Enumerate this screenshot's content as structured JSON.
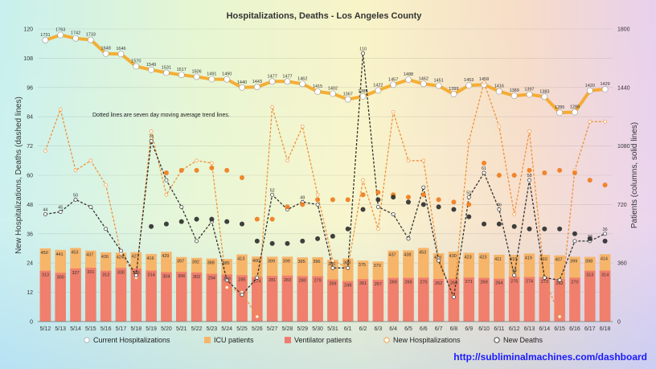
{
  "chart_data": {
    "type": "bar",
    "title": "Hospitalizations, Deaths - Los Angeles County",
    "ylabel_left": "New Hospitalizations, Deaths (dashed lines)",
    "ylabel_right": "Patients (columns, solid lines)",
    "annotation": "Dotted lines are seven day moving average trend lines.",
    "source": "http://subliminalmachines.com/dashboard",
    "ylim_left": [
      0,
      120
    ],
    "ylim_right": [
      0,
      1800
    ],
    "yticks_left": [
      "0",
      "12",
      "24",
      "36",
      "48",
      "60",
      "72",
      "84",
      "96",
      "108",
      "120"
    ],
    "yticks_right": [
      "0",
      "360",
      "720",
      "1080",
      "1440",
      "1800"
    ],
    "categories": [
      "5/12",
      "5/13",
      "5/14",
      "5/15",
      "5/16",
      "5/17",
      "5/18",
      "5/19",
      "5/20",
      "5/21",
      "5/22",
      "5/23",
      "5/24",
      "5/25",
      "5/26",
      "5/27",
      "5/28",
      "5/29",
      "5/30",
      "5/31",
      "6/1",
      "6/2",
      "6/3",
      "6/4",
      "6/5",
      "6/6",
      "6/7",
      "6/8",
      "6/9",
      "6/10",
      "6/11",
      "6/12",
      "6/13",
      "6/14",
      "6/15",
      "6/16",
      "6/17",
      "6/18"
    ],
    "legend": [
      "Current Hospitalizations",
      "ICU patients",
      "Ventilator patients",
      "New Hospitalizations",
      "New Deaths"
    ],
    "legend_position": "bottom",
    "colors": {
      "hosp": "#f5a623",
      "icu": "#f7b56a",
      "vent": "#f07b6e",
      "newhosp": "#f0913a",
      "deaths": "#333333"
    },
    "series": [
      {
        "name": "Current Hospitalizations",
        "axis": "right",
        "values": [
          1731,
          1763,
          1742,
          1733,
          1648,
          1646,
          1570,
          1549,
          1531,
          1517,
          1506,
          1491,
          1490,
          1440,
          1443,
          1477,
          1477,
          1462,
          1415,
          1402,
          1367,
          1385,
          1422,
          1457,
          1488,
          1462,
          1451,
          1399,
          1453,
          1458,
          1416,
          1389,
          1397,
          1383,
          1285,
          1288,
          1420,
          1429
        ]
      },
      {
        "name": "ICU patients",
        "axis": "right",
        "values": [
          450,
          441,
          453,
          437,
          426,
          424,
          427,
          416,
          429,
          397,
          392,
          388,
          385,
          413,
          400,
          399,
          399,
          395,
          396,
          380,
          388,
          375,
          370,
          437,
          438,
          453,
          420,
          430,
          423,
          423,
          411,
          410,
          419,
          410,
          407,
          399,
          398,
          414
        ]
      },
      {
        "name": "Ventilator patients",
        "axis": "right",
        "values": [
          313,
          300,
          327,
          331,
          313,
          330,
          326,
          314,
          304,
          306,
          302,
          294,
          290,
          285,
          274,
          281,
          283,
          280,
          279,
          259,
          249,
          261,
          257,
          269,
          269,
          270,
          262,
          264,
          271,
          269,
          264,
          275,
          274,
          273,
          262,
          270,
          313,
          314
        ]
      },
      {
        "name": "New Hospitalizations",
        "axis": "left",
        "values": [
          70,
          87,
          62,
          66,
          56,
          28,
          18,
          78,
          52,
          62,
          66,
          65,
          14,
          12,
          2,
          88,
          66,
          80,
          52,
          25,
          22,
          58,
          38,
          86,
          66,
          66,
          26,
          10,
          74,
          98,
          80,
          44,
          78,
          18,
          2,
          62,
          82,
          82
        ]
      },
      {
        "name": "New Deaths",
        "axis": "left",
        "values": [
          44,
          45,
          50,
          47,
          38,
          29,
          19,
          74,
          58,
          47,
          33,
          41,
          17,
          11,
          18,
          52,
          46,
          49,
          48,
          22,
          22,
          110,
          47,
          44,
          34,
          55,
          25,
          10,
          51,
          61,
          46,
          19,
          58,
          18,
          17,
          33,
          33,
          36
        ]
      },
      {
        "name": "New Hospitalizations trend",
        "axis": "left",
        "values": [
          null,
          null,
          null,
          null,
          null,
          null,
          null,
          null,
          61,
          62,
          62,
          63,
          62,
          59,
          42,
          42,
          47,
          48,
          50,
          50,
          50,
          52,
          53,
          52,
          51,
          52,
          50,
          49,
          48,
          65,
          60,
          60,
          62,
          61,
          62,
          61,
          58,
          56
        ]
      },
      {
        "name": "New Deaths trend",
        "axis": "left",
        "values": [
          null,
          null,
          null,
          null,
          null,
          null,
          null,
          39,
          40,
          41,
          42,
          42,
          41,
          40,
          33,
          32,
          32,
          33,
          34,
          35,
          38,
          46,
          50,
          51,
          49,
          48,
          47,
          46,
          43,
          40,
          40,
          39,
          38,
          38,
          38,
          36,
          34,
          33
        ]
      }
    ],
    "data_labels_ventilator": [
      "313",
      "300",
      "327",
      "331",
      "313",
      "330",
      "326",
      "314",
      "304",
      "306",
      "302",
      "294",
      "290",
      "285",
      "274",
      "281",
      "283",
      "280",
      "279",
      "259",
      "249",
      "261",
      "257",
      "269",
      "269",
      "270",
      "262",
      "264",
      "271",
      "269",
      "264",
      "275",
      "274",
      "273",
      "262",
      "270",
      "313",
      "314"
    ],
    "data_labels_icu": [
      "450",
      "441",
      "453",
      "437",
      "426",
      "424",
      "427",
      "416",
      "429",
      "397",
      "392",
      "388",
      "385",
      "413",
      "400",
      "399",
      "399",
      "395",
      "396",
      "380",
      "388",
      "375",
      "370",
      "437",
      "438",
      "453",
      "420",
      "430",
      "423",
      "423",
      "411",
      "410",
      "419",
      "410",
      "407",
      "399",
      "398",
      "414"
    ],
    "data_labels_hosp": [
      "1731",
      "1763",
      "1742",
      "1733",
      "1648",
      "1646",
      "1570",
      "1549",
      "1531",
      "1517",
      "1506",
      "1491",
      "1490",
      "1440",
      "1443",
      "1477",
      "1477",
      "1462",
      "1415",
      "1402",
      "1367",
      "1385",
      "1422",
      "1457",
      "1488",
      "1462",
      "1451",
      "1399",
      "1453",
      "1458",
      "1416",
      "1389",
      "1397",
      "1383",
      "1285",
      "1288",
      "1420",
      "1429"
    ],
    "data_labels_deaths": {
      "21": "110",
      "28": "51",
      "29": "61",
      "30": "46",
      "32": "58",
      "37": "36",
      "36": "33",
      "0": "44",
      "1": "45",
      "2": "50",
      "15": "52",
      "17": "49",
      "7": "74",
      "31": "19"
    }
  }
}
